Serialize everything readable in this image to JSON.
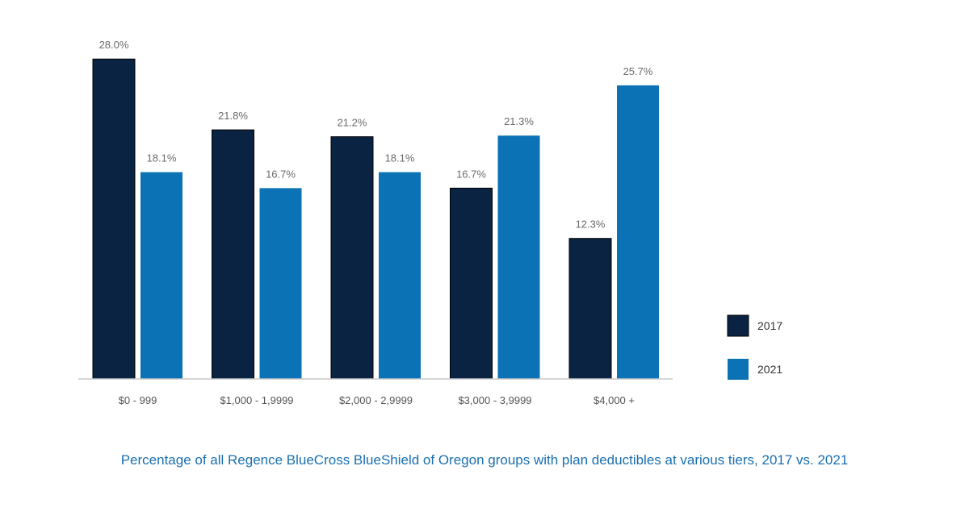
{
  "caption": "Percentage of all Regence BlueCross BlueShield of Oregon groups with plan deductibles at various tiers, 2017 vs. 2021",
  "chart_data": {
    "type": "bar",
    "title": "",
    "xlabel": "",
    "ylabel": "",
    "ylim": [
      0,
      30
    ],
    "grid": false,
    "legend_position": "right",
    "categories": [
      "$0 - 999",
      "$1,000 - 1,9999",
      "$2,000 - 2,9999",
      "$3,000 - 3,9999",
      "$4,000 +"
    ],
    "series": [
      {
        "name": "2017",
        "color": "#0a2342",
        "values": [
          28.0,
          21.8,
          21.2,
          16.7,
          12.3
        ],
        "labels": [
          "28.0%",
          "21.8%",
          "21.2%",
          "16.7%",
          "12.3%"
        ]
      },
      {
        "name": "2021",
        "color": "#0a72b5",
        "values": [
          18.1,
          16.7,
          18.1,
          21.3,
          25.7
        ],
        "labels": [
          "18.1%",
          "16.7%",
          "18.1%",
          "21.3%",
          "25.7%"
        ]
      }
    ],
    "axis_color": "#c8c8c8"
  }
}
